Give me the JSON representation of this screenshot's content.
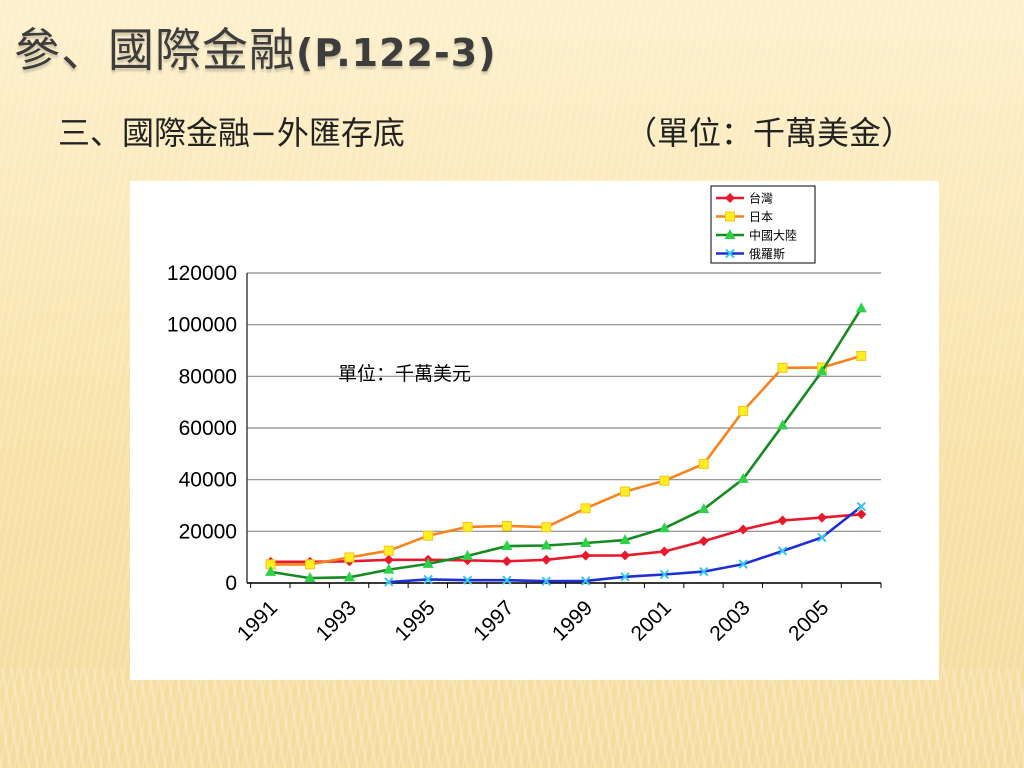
{
  "slide": {
    "title_main": "參、國際金融",
    "title_ref": "(P.122-3)",
    "subtitle": "三、國際金融−外匯存底",
    "unit_label": "（單位：千萬美金）"
  },
  "chart_data": {
    "type": "line",
    "title": "",
    "annotation": "單位：千萬美元",
    "xlabel": "",
    "ylabel": "",
    "ylim": [
      0,
      120000
    ],
    "yticks": [
      0,
      20000,
      40000,
      60000,
      80000,
      100000,
      120000
    ],
    "x": [
      1991,
      1992,
      1993,
      1994,
      1995,
      1996,
      1997,
      1998,
      1999,
      2000,
      2001,
      2002,
      2003,
      2004,
      2005,
      2006
    ],
    "xtick_labels": [
      "1991",
      "1993",
      "1995",
      "1997",
      "1999",
      "2001",
      "2003",
      "2005"
    ],
    "grid": "horizontal",
    "legend_position": "top-right",
    "series": [
      {
        "name": "台灣",
        "color": "#e8192c",
        "marker": "diamond",
        "values": [
          8200,
          8200,
          8400,
          9000,
          9000,
          8800,
          8400,
          9000,
          10600,
          10700,
          12200,
          16200,
          20700,
          24200,
          25300,
          26600
        ]
      },
      {
        "name": "日本",
        "color": "#f7821e",
        "marker": "square",
        "values": [
          7200,
          7200,
          9900,
          12500,
          18300,
          21700,
          22100,
          21600,
          28900,
          35400,
          39600,
          46100,
          66600,
          83300,
          83400,
          87900
        ]
      },
      {
        "name": "中國大陸",
        "color": "#178a22",
        "marker": "triangle",
        "values": [
          4300,
          1900,
          2200,
          5200,
          7400,
          10500,
          14300,
          14500,
          15500,
          16600,
          21200,
          28600,
          40300,
          61000,
          81900,
          106300
        ]
      },
      {
        "name": "俄羅斯",
        "color": "#1f2fd6",
        "marker": "cross",
        "values": [
          null,
          null,
          null,
          400,
          1400,
          1100,
          1100,
          700,
          800,
          2400,
          3300,
          4400,
          7300,
          12400,
          17600,
          29600
        ]
      }
    ]
  }
}
